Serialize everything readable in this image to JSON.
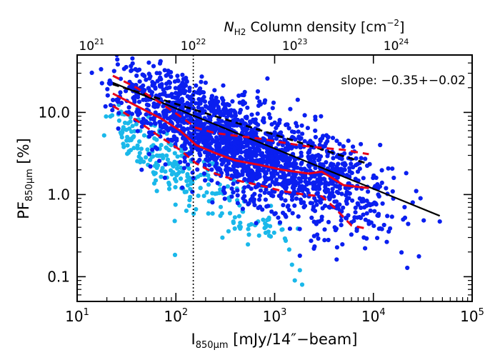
{
  "chart_data": {
    "type": "scatter",
    "annotation": "slope: −0.35+−0.02",
    "x_axis": {
      "label_base": "I",
      "label_sub": "850μm",
      "label_rest": " [mJy/14″−beam]",
      "scale": "log",
      "range": [
        10,
        100000
      ],
      "ticks": [
        {
          "value": 10,
          "base": "10",
          "exp": "1"
        },
        {
          "value": 100,
          "base": "10",
          "exp": "2"
        },
        {
          "value": 1000,
          "base": "10",
          "exp": "3"
        },
        {
          "value": 10000,
          "base": "10",
          "exp": "4"
        },
        {
          "value": 100000,
          "base": "10",
          "exp": "5"
        }
      ]
    },
    "top_axis": {
      "label_italic": "N",
      "label_sub": "H2",
      "label_rest": " Column density [cm",
      "label_sup": "−2",
      "label_end": "]",
      "ticks": [
        {
          "at_x": 14,
          "base": "10",
          "exp": "21"
        },
        {
          "at_x": 150,
          "base": "10",
          "exp": "22"
        },
        {
          "at_x": 1600,
          "base": "10",
          "exp": "23"
        },
        {
          "at_x": 17000,
          "base": "10",
          "exp": "24"
        }
      ]
    },
    "y_axis": {
      "label_base": "PF",
      "label_sub": "850μm",
      "label_rest": " [%]",
      "scale": "log",
      "range": [
        0.05,
        50
      ],
      "ticks": [
        {
          "value": 0.1,
          "label": "0.1"
        },
        {
          "value": 1,
          "label": "1.0"
        },
        {
          "value": 10,
          "label": "10.0"
        }
      ]
    },
    "vertical_line_x": 150,
    "colors": {
      "dark_points": "#0a1ff0",
      "light_points": "#1ab8ea",
      "fit_line": "#000000",
      "median_line": "#e8001a",
      "envelope_lines": "#e8001a"
    },
    "fit_line": [
      [
        23,
        23
      ],
      [
        47000,
        0.55
      ]
    ],
    "upper_dashed_black": [
      [
        23,
        22
      ],
      [
        9000,
        2.35
      ]
    ],
    "median": [
      [
        23,
        17
      ],
      [
        40,
        12
      ],
      [
        70,
        8.5
      ],
      [
        110,
        6
      ],
      [
        160,
        4
      ],
      [
        250,
        3.2
      ],
      [
        400,
        2.6
      ],
      [
        700,
        2.3
      ],
      [
        1200,
        2
      ],
      [
        2200,
        1.8
      ],
      [
        3000,
        1.9
      ],
      [
        5000,
        1.3
      ],
      [
        9000,
        1.2
      ]
    ],
    "upper_envelope": [
      [
        23,
        28
      ],
      [
        40,
        20
      ],
      [
        70,
        13
      ],
      [
        110,
        9
      ],
      [
        160,
        6.5
      ],
      [
        250,
        5.6
      ],
      [
        400,
        5.2
      ],
      [
        700,
        4.8
      ],
      [
        1200,
        4.3
      ],
      [
        2000,
        3.9
      ],
      [
        3000,
        3.7
      ],
      [
        5000,
        3.5
      ],
      [
        9000,
        3.1
      ]
    ],
    "lower_envelope": [
      [
        23,
        12
      ],
      [
        40,
        8
      ],
      [
        70,
        5
      ],
      [
        110,
        3.5
      ],
      [
        160,
        2.4
      ],
      [
        250,
        1.8
      ],
      [
        400,
        1.5
      ],
      [
        700,
        1.3
      ],
      [
        1200,
        1.1
      ],
      [
        2000,
        1.0
      ],
      [
        3000,
        0.95
      ],
      [
        4000,
        0.7
      ],
      [
        6000,
        0.42
      ],
      [
        9000,
        0.38
      ]
    ],
    "dark_cloud_clusters": [
      {
        "center": [
          60,
          18
        ],
        "spread": [
          0.25,
          0.18
        ],
        "count": 120
      },
      {
        "center": [
          110,
          10
        ],
        "spread": [
          0.3,
          0.22
        ],
        "count": 260
      },
      {
        "center": [
          250,
          5.5
        ],
        "spread": [
          0.32,
          0.25
        ],
        "count": 420
      },
      {
        "center": [
          600,
          3.0
        ],
        "spread": [
          0.35,
          0.27
        ],
        "count": 520
      },
      {
        "center": [
          1600,
          2.0
        ],
        "spread": [
          0.33,
          0.3
        ],
        "count": 380
      },
      {
        "center": [
          4000,
          1.4
        ],
        "spread": [
          0.3,
          0.32
        ],
        "count": 180
      },
      {
        "center": [
          10000,
          0.9
        ],
        "spread": [
          0.3,
          0.28
        ],
        "count": 60
      }
    ],
    "dark_outliers": [
      [
        70,
        42
      ],
      [
        40,
        28
      ],
      [
        35,
        32
      ],
      [
        120,
        22
      ],
      [
        200,
        23
      ],
      [
        500,
        13
      ],
      [
        800,
        14
      ],
      [
        2600,
        5
      ],
      [
        3500,
        5
      ],
      [
        25000,
        0.8
      ],
      [
        30000,
        0.9
      ],
      [
        47000,
        0.47
      ],
      [
        8000,
        0.3
      ],
      [
        2500,
        0.22
      ],
      [
        1800,
        0.18
      ],
      [
        3500,
        0.28
      ]
    ],
    "light_cloud_clusters": [
      {
        "center": [
          30,
          6.5
        ],
        "spread": [
          0.1,
          0.18
        ],
        "count": 30
      },
      {
        "center": [
          55,
          4.0
        ],
        "spread": [
          0.15,
          0.2
        ],
        "count": 60
      },
      {
        "center": [
          100,
          2.3
        ],
        "spread": [
          0.18,
          0.22
        ],
        "count": 70
      },
      {
        "center": [
          200,
          1.2
        ],
        "spread": [
          0.2,
          0.22
        ],
        "count": 60
      },
      {
        "center": [
          400,
          0.6
        ],
        "spread": [
          0.2,
          0.18
        ],
        "count": 40
      },
      {
        "center": [
          900,
          0.35
        ],
        "spread": [
          0.18,
          0.14
        ],
        "count": 20
      }
    ],
    "light_outliers": [
      [
        1800,
        0.12
      ],
      [
        1600,
        0.09
      ],
      [
        1900,
        0.08
      ],
      [
        1500,
        0.14
      ]
    ]
  }
}
